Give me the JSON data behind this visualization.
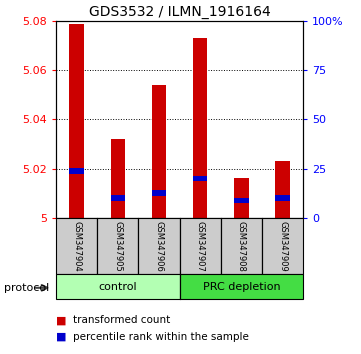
{
  "title": "GDS3532 / ILMN_1916164",
  "samples": [
    "GSM347904",
    "GSM347905",
    "GSM347906",
    "GSM347907",
    "GSM347908",
    "GSM347909"
  ],
  "red_values": [
    5.079,
    5.032,
    5.054,
    5.073,
    5.016,
    5.023
  ],
  "blue_values": [
    5.019,
    5.008,
    5.01,
    5.016,
    5.007,
    5.008
  ],
  "y_min": 5.0,
  "y_max": 5.08,
  "y_ticks_left": [
    5.0,
    5.02,
    5.04,
    5.06,
    5.08
  ],
  "y_ticks_right_pcts": [
    0,
    25,
    50,
    75,
    100
  ],
  "y_ticks_right_labels": [
    "0",
    "25",
    "50",
    "75",
    "100%"
  ],
  "groups": [
    {
      "label": "control",
      "start": 0,
      "end": 2,
      "color": "#b3ffb3"
    },
    {
      "label": "PRC depletion",
      "start": 3,
      "end": 5,
      "color": "#44dd44"
    }
  ],
  "protocol_label": "protocol",
  "bar_color": "#cc0000",
  "blue_color": "#0000cc",
  "bar_width": 0.35,
  "sample_bg_color": "#cccccc",
  "legend_red_label": "transformed count",
  "legend_blue_label": "percentile rank within the sample",
  "title_fontsize": 10,
  "tick_fontsize": 8,
  "sample_fontsize": 6,
  "group_fontsize": 8
}
